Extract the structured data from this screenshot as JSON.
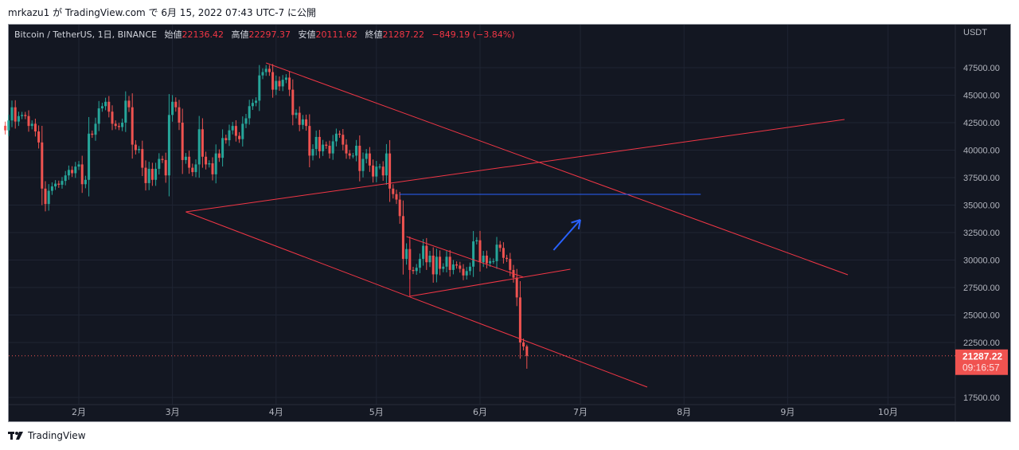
{
  "publish_line": "mrkazu1 が TradingView.com で 6月 15, 2022 07:43 UTC-7 に公開",
  "legend": {
    "symbol": "Bitcoin / TetherUS, 1日, BINANCE",
    "open_label": "始値",
    "open": "22136.42",
    "high_label": "高値",
    "high": "22297.37",
    "low_label": "安値",
    "low": "20111.62",
    "close_label": "終値",
    "close": "21287.22",
    "change": "−849.19 (−3.84%)"
  },
  "footer": {
    "brand": "TradingView",
    "icon": "tradingview-logo-icon"
  },
  "colors": {
    "up": "#26a69a",
    "down": "#ef5350",
    "drawing": "#f23645",
    "blue": "#2962ff",
    "bg": "#131722"
  },
  "chart_data": {
    "type": "candlestick",
    "symbol": "BTCUSDT",
    "timeframe": "1日",
    "currency_label": "USDT",
    "ylim": [
      16500,
      49500
    ],
    "yticks": [
      17500,
      22500,
      25000,
      27500,
      30000,
      32500,
      35000,
      37500,
      40000,
      42500,
      45000,
      47500
    ],
    "ytick_labels": [
      "17500.00",
      "22500.00",
      "25000.00",
      "27500.00",
      "30000.00",
      "32500.00",
      "35000.00",
      "37500.00",
      "40000.00",
      "42500.00",
      "45000.00",
      "47500.00"
    ],
    "xtick_labels": [
      {
        "label": "2月",
        "date": "2022-02-01"
      },
      {
        "label": "3月",
        "date": "2022-03-01"
      },
      {
        "label": "4月",
        "date": "2022-04-01"
      },
      {
        "label": "5月",
        "date": "2022-05-01"
      },
      {
        "label": "6月",
        "date": "2022-06-01"
      },
      {
        "label": "7月",
        "date": "2022-07-01"
      },
      {
        "label": "8月",
        "date": "2022-08-01"
      },
      {
        "label": "9月",
        "date": "2022-09-01"
      },
      {
        "label": "10月",
        "date": "2022-10-01"
      }
    ],
    "first_date": "2022-01-10",
    "closes": [
      41800,
      42700,
      43900,
      42600,
      43100,
      43200,
      43100,
      42200,
      42400,
      41700,
      40700,
      36500,
      35100,
      36300,
      36700,
      36950,
      36850,
      37200,
      37700,
      38200,
      37900,
      38500,
      38700,
      36900,
      37300,
      41500,
      41400,
      42400,
      43800,
      44000,
      44400,
      43500,
      42400,
      42200,
      42100,
      42500,
      44500,
      43900,
      40500,
      40000,
      40100,
      38400,
      37000,
      38300,
      37300,
      38300,
      39200,
      39100,
      37700,
      43200,
      44400,
      43900,
      42500,
      39100,
      39400,
      38400,
      38000,
      38700,
      41900,
      39400,
      38700,
      38800,
      37800,
      39700,
      39300,
      41100,
      40900,
      41800,
      42200,
      41300,
      41000,
      42400,
      42900,
      44000,
      44300,
      44500,
      46800,
      47100,
      47400,
      47100,
      45500,
      46300,
      45800,
      46400,
      46600,
      45500,
      43200,
      43400,
      42300,
      42800,
      42200,
      39500,
      40100,
      41200,
      39900,
      40500,
      40400,
      39700,
      40800,
      41500,
      41400,
      40500,
      39700,
      39500,
      39500,
      40400,
      38100,
      39200,
      39700,
      38600,
      37600,
      38500,
      38500,
      37700,
      39700,
      36500,
      36000,
      35500,
      34000,
      30100,
      31000,
      29100,
      29000,
      29300,
      30100,
      31300,
      29800,
      30400,
      28700,
      30300,
      29200,
      29400,
      30300,
      29100,
      29600,
      29500,
      29200,
      28600,
      29000,
      29400,
      31700,
      31800,
      29800,
      30400,
      29700,
      29900,
      29900,
      31400,
      31100,
      30200,
      30100,
      29100,
      28400,
      26600,
      22500,
      22136.42,
      21287.22
    ],
    "last_candle": {
      "open": 22136.42,
      "high": 22297.37,
      "low": 20111.62,
      "close": 21287.22
    },
    "last_price_label": {
      "price": "21287.22",
      "countdown": "09:16:57"
    },
    "drawings": [
      {
        "type": "trendline",
        "color": "#f23645",
        "from": [
          "2022-03-29",
          47935
        ],
        "to": [
          "2022-09-19",
          28660
        ]
      },
      {
        "type": "trendline",
        "color": "#f23645",
        "from": [
          "2022-03-05",
          34384
        ],
        "to": [
          "2022-09-18",
          42790
        ]
      },
      {
        "type": "trendline",
        "color": "#f23645",
        "from": [
          "2022-03-05",
          34384
        ],
        "to": [
          "2022-07-21",
          18442
        ]
      },
      {
        "type": "trendline",
        "color": "#f23645",
        "from": [
          "2022-05-10",
          32137
        ],
        "to": [
          "2022-06-14",
          28442
        ]
      },
      {
        "type": "trendline",
        "color": "#f23645",
        "from": [
          "2022-05-11",
          26703
        ],
        "to": [
          "2022-06-28",
          29167
        ]
      },
      {
        "type": "trendline",
        "color": "#f23645",
        "from": [
          "2022-05-11",
          32137
        ],
        "to": [
          "2022-05-11",
          26703
        ]
      },
      {
        "type": "horizontal",
        "color": "#2962ff",
        "from": [
          "2022-05-08",
          35978
        ],
        "to": [
          "2022-08-06",
          35978
        ]
      },
      {
        "type": "arrow",
        "color": "#2962ff",
        "from": [
          "2022-06-23",
          30906
        ],
        "to": [
          "2022-07-01",
          33659
        ]
      }
    ]
  }
}
